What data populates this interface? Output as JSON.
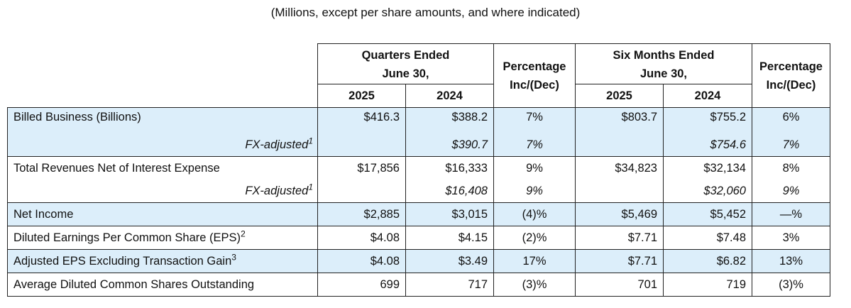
{
  "caption": "(Millions, except per share amounts, and where indicated)",
  "headers": {
    "quarters_line1": "Quarters Ended",
    "quarters_line2": "June 30,",
    "pct_line1": "Percentage",
    "pct_line2": "Inc/(Dec)",
    "six_line1": "Six Months Ended",
    "six_line2": "June 30,",
    "y2025": "2025",
    "y2024": "2024"
  },
  "rows": {
    "billed": {
      "label": "Billed Business (Billions)",
      "q2025": "$416.3",
      "q2024": "$388.2",
      "qpct": "7%",
      "s2025": "$803.7",
      "s2024": "$755.2",
      "spct": "6%"
    },
    "billed_fx": {
      "label": "FX-adjusted",
      "sup": "1",
      "q2024": "$390.7",
      "qpct": "7%",
      "s2024": "$754.6",
      "spct": "7%"
    },
    "revenue": {
      "label": "Total Revenues Net of Interest Expense",
      "q2025": "$17,856",
      "q2024": "$16,333",
      "qpct": "9%",
      "s2025": "$34,823",
      "s2024": "$32,134",
      "spct": "8%"
    },
    "revenue_fx": {
      "label": "FX-adjusted",
      "sup": "1",
      "q2024": "$16,408",
      "qpct": "9%",
      "s2024": "$32,060",
      "spct": "9%"
    },
    "net_income": {
      "label": "Net Income",
      "q2025": "$2,885",
      "q2024": "$3,015",
      "qpct": "(4)%",
      "s2025": "$5,469",
      "s2024": "$5,452",
      "spct": "—%"
    },
    "eps": {
      "label": "Diluted Earnings Per Common Share (EPS)",
      "sup": "2",
      "q2025": "$4.08",
      "q2024": "$4.15",
      "qpct": "(2)%",
      "s2025": "$7.71",
      "s2024": "$7.48",
      "spct": "3%"
    },
    "adj_eps": {
      "label": "Adjusted EPS Excluding Transaction Gain",
      "sup": "3",
      "q2025": "$4.08",
      "q2024": "$3.49",
      "qpct": "17%",
      "s2025": "$7.71",
      "s2024": "$6.82",
      "spct": "13%"
    },
    "shares": {
      "label": "Average Diluted Common Shares Outstanding",
      "q2025": "699",
      "q2024": "717",
      "qpct": "(3)%",
      "s2025": "701",
      "s2024": "719",
      "spct": "(3)%"
    }
  },
  "colors": {
    "shade": "#dceefa",
    "border": "#222222"
  }
}
